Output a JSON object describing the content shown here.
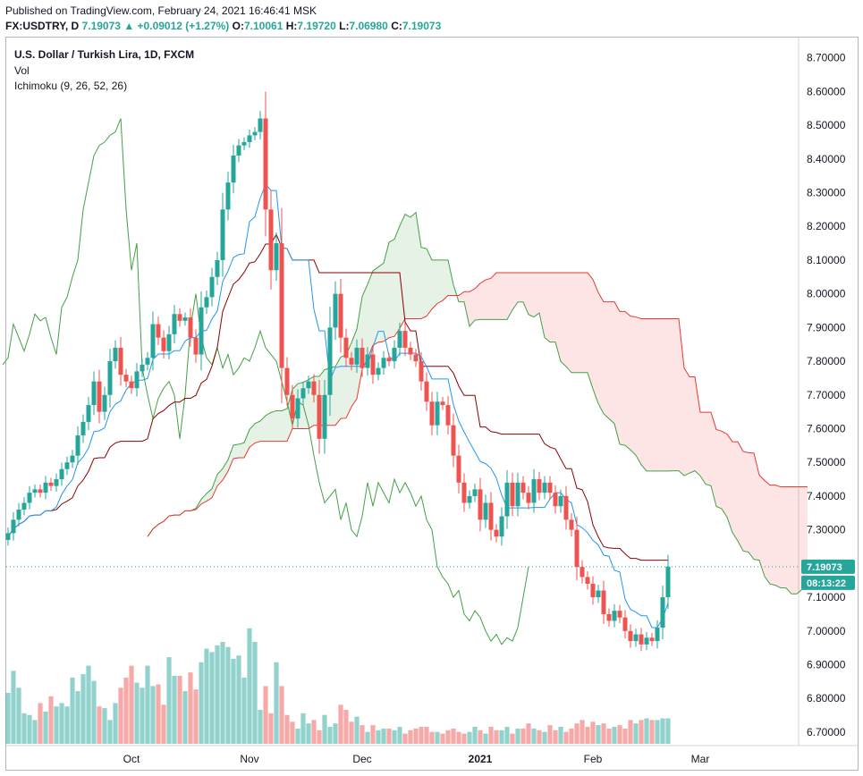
{
  "header": {
    "published": "Published on TradingView.com, February 24, 2021 16:46:41 MSK",
    "symbol": "FX:USDTRY, D",
    "last": "7.19073",
    "change": "+0.09012 (+1.27%)",
    "open_label": "O:",
    "open": "7.10061",
    "high_label": "H:",
    "high": "7.19720",
    "low_label": "L:",
    "low": "7.06980",
    "close_label": "C:",
    "close": "7.19073"
  },
  "legend": {
    "title": "U.S. Dollar / Turkish Lira, 1D, FXCM",
    "volume": "Vol",
    "ichimoku": "Ichimoku (9, 26, 52, 26)"
  },
  "price_tag": {
    "price": "7.19073",
    "countdown": "08:13:22"
  },
  "colors": {
    "up": "#26a69a",
    "down": "#ef5350",
    "conversion": "#2196f3",
    "base": "#8b0000",
    "lagging": "#43a047",
    "spanA": "#43a047",
    "spanB": "#e53935",
    "cloud_bull": "#43a04722",
    "cloud_bear": "#e5393522"
  },
  "chart_data": {
    "type": "candlestick",
    "title": "U.S. Dollar / Turkish Lira, 1D, FXCM",
    "ylim": [
      6.66,
      8.76
    ],
    "y_ticks": [
      "8.70000",
      "8.60000",
      "8.50000",
      "8.40000",
      "8.30000",
      "8.20000",
      "8.10000",
      "8.00000",
      "7.90000",
      "7.80000",
      "7.70000",
      "7.60000",
      "7.50000",
      "7.40000",
      "7.30000",
      "7.20000",
      "7.10000",
      "7.00000",
      "6.90000",
      "6.80000",
      "6.70000"
    ],
    "x_ticks": [
      {
        "label": "Oct",
        "i": 23
      },
      {
        "label": "Nov",
        "i": 45
      },
      {
        "label": "Dec",
        "i": 66
      },
      {
        "label": "2021",
        "i": 88
      },
      {
        "label": "Feb",
        "i": 109
      },
      {
        "label": "Mar",
        "i": 129
      }
    ],
    "total_slots": 135,
    "closes": [
      7.29,
      7.33,
      7.36,
      7.38,
      7.41,
      7.42,
      7.41,
      7.44,
      7.43,
      7.45,
      7.48,
      7.5,
      7.52,
      7.58,
      7.62,
      7.67,
      7.74,
      7.65,
      7.7,
      7.8,
      7.84,
      7.76,
      7.74,
      7.72,
      7.77,
      7.79,
      7.81,
      7.91,
      7.87,
      7.83,
      7.88,
      7.94,
      7.92,
      7.93,
      7.87,
      7.82,
      7.96,
      7.99,
      8.05,
      8.1,
      8.25,
      8.33,
      8.41,
      8.44,
      8.45,
      8.47,
      8.48,
      8.52,
      8.25,
      8.07,
      8.15,
      7.78,
      7.7,
      7.63,
      7.69,
      7.72,
      7.74,
      7.7,
      7.57,
      7.7,
      7.9,
      8.0,
      7.87,
      7.81,
      7.79,
      7.84,
      7.78,
      7.82,
      7.76,
      7.78,
      7.81,
      7.8,
      7.84,
      7.89,
      7.84,
      7.82,
      7.8,
      7.74,
      7.68,
      7.61,
      7.68,
      7.67,
      7.61,
      7.52,
      7.44,
      7.38,
      7.4,
      7.42,
      7.33,
      7.38,
      7.3,
      7.28,
      7.34,
      7.44,
      7.37,
      7.44,
      7.41,
      7.38,
      7.45,
      7.41,
      7.44,
      7.41,
      7.37,
      7.4,
      7.33,
      7.3,
      7.19,
      7.16,
      7.14,
      7.1,
      7.12,
      7.05,
      7.03,
      7.06,
      7.04,
      7.0,
      6.97,
      6.99,
      6.96,
      6.98,
      6.97,
      7.01,
      7.1,
      7.19073
    ],
    "volumes": [
      0.3,
      0.43,
      0.33,
      0.18,
      0.17,
      0.14,
      0.24,
      0.19,
      0.28,
      0.22,
      0.24,
      0.22,
      0.39,
      0.31,
      0.41,
      0.46,
      0.37,
      0.22,
      0.21,
      0.14,
      0.24,
      0.33,
      0.39,
      0.46,
      0.36,
      0.33,
      0.46,
      0.34,
      0.35,
      0.23,
      0.51,
      0.4,
      0.4,
      0.31,
      0.42,
      0.32,
      0.48,
      0.56,
      0.54,
      0.58,
      0.6,
      0.57,
      0.5,
      0.52,
      0.39,
      0.68,
      0.6,
      0.2,
      0.34,
      0.18,
      0.48,
      0.34,
      0.17,
      0.13,
      0.09,
      0.18,
      0.12,
      0.14,
      0.08,
      0.17,
      0.1,
      0.12,
      0.23,
      0.2,
      0.13,
      0.16,
      0.11,
      0.07,
      0.11,
      0.08,
      0.09,
      0.09,
      0.08,
      0.1,
      0.06,
      0.08,
      0.09,
      0.1,
      0.1,
      0.07,
      0.07,
      0.06,
      0.08,
      0.09,
      0.07,
      0.06,
      0.07,
      0.1,
      0.08,
      0.06,
      0.1,
      0.08,
      0.08,
      0.1,
      0.06,
      0.09,
      0.09,
      0.12,
      0.09,
      0.08,
      0.07,
      0.11,
      0.08,
      0.1,
      0.07,
      0.09,
      0.12,
      0.14,
      0.1,
      0.13,
      0.11,
      0.12,
      0.09,
      0.1,
      0.11,
      0.09,
      0.14,
      0.12,
      0.14,
      0.15,
      0.14,
      0.14,
      0.15,
      0.15
    ]
  }
}
